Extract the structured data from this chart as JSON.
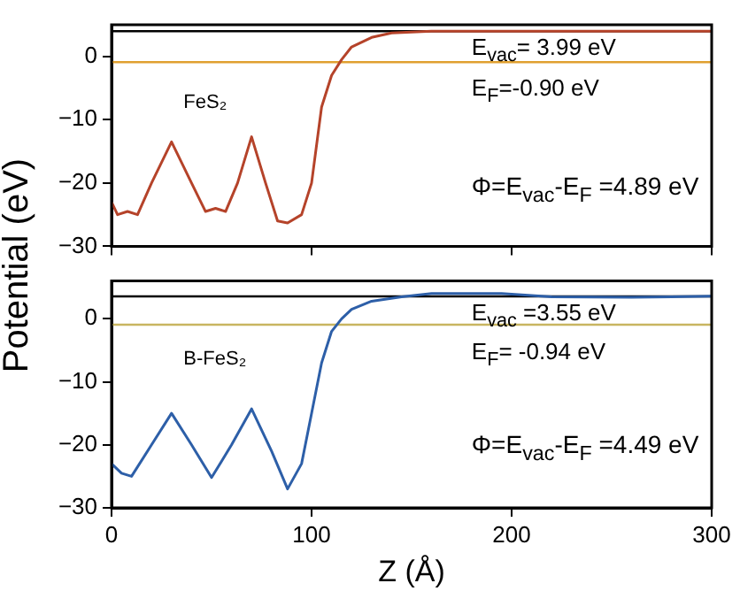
{
  "chart_data": [
    {
      "type": "line",
      "ylabel": "Potential (eV)",
      "x": [
        0,
        3,
        8,
        13,
        20,
        30,
        40,
        47,
        52,
        57,
        63,
        70,
        77,
        83,
        88,
        95,
        100,
        105,
        110,
        115,
        120,
        130,
        140,
        160,
        200,
        250,
        300
      ],
      "series": [
        {
          "color": "#b5432a",
          "values": [
            -23,
            -25,
            -24.5,
            -25,
            -20,
            -13.5,
            -20,
            -24.5,
            -24,
            -24.5,
            -20,
            -12.7,
            -20,
            -26,
            -26.3,
            -25,
            -20,
            -8,
            -3,
            -0.5,
            1.5,
            3,
            3.7,
            4,
            4,
            4,
            4
          ]
        }
      ],
      "xlim": [
        0,
        300
      ],
      "xticks": [
        0,
        100,
        200,
        300
      ],
      "ylim": [
        -30,
        5
      ],
      "yticks": [
        -30,
        -20,
        -10,
        0
      ],
      "tick_labels": "y",
      "grid": false,
      "legend": false,
      "marker": "none",
      "line_style": "solid",
      "ref_lines": [
        {
          "axis": "y",
          "value": 3.99,
          "label": "E$_{vac}$= 3.99 eV",
          "color": "#000000"
        },
        {
          "axis": "y",
          "value": -0.9,
          "label": "E$_{F}$=-0.90 eV",
          "color": "#e0a030"
        }
      ],
      "annotations": [
        "FeS₂",
        "Φ=E$_{vac}$-E$_{F}$ =4.89 eV"
      ]
    },
    {
      "type": "line",
      "xlabel": "Z (Å)",
      "x": [
        0,
        5,
        10,
        20,
        30,
        40,
        50,
        60,
        70,
        80,
        88,
        95,
        100,
        105,
        110,
        115,
        120,
        130,
        145,
        160,
        195,
        220,
        260,
        300
      ],
      "series": [
        {
          "color": "#2d5fa8",
          "values": [
            -23,
            -24.5,
            -25,
            -20,
            -15,
            -20,
            -25.2,
            -20,
            -14.3,
            -21,
            -27,
            -23,
            -15,
            -7,
            -2,
            0,
            1.5,
            2.8,
            3.5,
            4,
            4,
            3.5,
            3.4,
            3.6
          ]
        }
      ],
      "xlim": [
        0,
        300
      ],
      "xticks": [
        0,
        100,
        200,
        300
      ],
      "ylim": [
        -30,
        6
      ],
      "yticks": [
        -30,
        -20,
        -10,
        0
      ],
      "grid": false,
      "legend": false,
      "marker": "none",
      "line_style": "solid",
      "ref_lines": [
        {
          "axis": "y",
          "value": 3.55,
          "label": "E$_{vac}$ =3.55 eV",
          "color": "#000000"
        },
        {
          "axis": "y",
          "value": -0.94,
          "label": "E$_{F}$= -0.94 eV",
          "color": "#c8b560"
        }
      ],
      "annotations": [
        "B-FeS₂",
        "Φ=E$_{vac}$-E$_{F}$ =4.49 eV"
      ]
    }
  ]
}
